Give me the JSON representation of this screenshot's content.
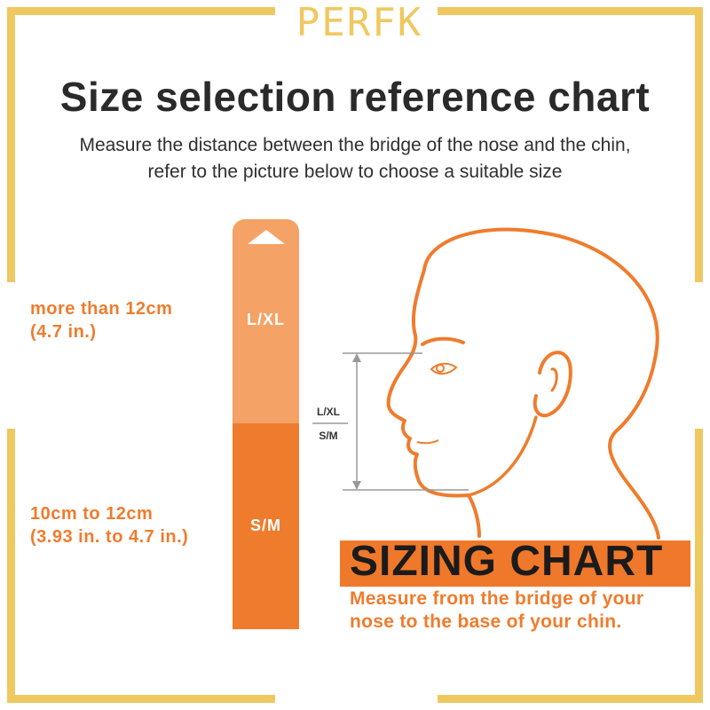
{
  "brand": "PERFK",
  "title": "Size selection reference chart",
  "subtitle_line1": "Measure the distance between the bridge of the nose and the chin,",
  "subtitle_line2": "refer to the picture below to choose a suitable size",
  "scale": {
    "large_label": "L/XL",
    "small_label": "S/M",
    "large_color": "#f4a266",
    "small_color": "#ef7c2d"
  },
  "large_range": {
    "line1": "more than 12cm",
    "line2": "(4.7 in.)"
  },
  "small_range": {
    "line1": "10cm to 12cm",
    "line2": "(3.93 in. to 4.7 in.)"
  },
  "measure_marker": {
    "upper_label": "L/XL",
    "lower_label": "S/M"
  },
  "sizing": {
    "title": "SIZING CHART",
    "note_line1": "Measure from the bridge of your",
    "note_line2": "nose to the base of your chin."
  },
  "colors": {
    "accent": "#ef7c2d",
    "frame": "#f0c860",
    "text": "#2a2a2a"
  }
}
